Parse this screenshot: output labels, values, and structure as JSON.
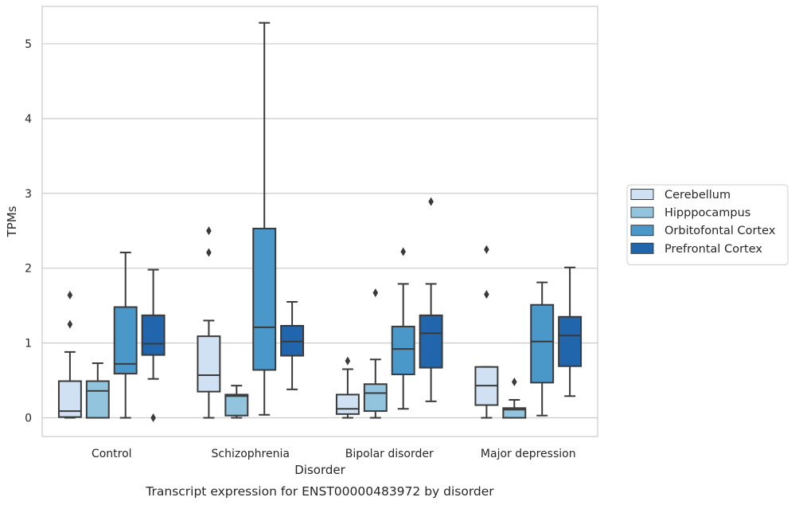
{
  "chart_data": {
    "type": "box",
    "caption": "Transcript expression for ENST00000483972 by disorder",
    "xlabel": "Disorder",
    "ylabel": "TPMs",
    "ylim": [
      -0.25,
      5.5
    ],
    "yticks": [
      0,
      1,
      2,
      3,
      4,
      5
    ],
    "grid": true,
    "legend_position": "right",
    "categories": [
      "Control",
      "Schizophrenia",
      "Bipolar disorder",
      "Major depression"
    ],
    "series": [
      {
        "name": "Cerebellum",
        "color": "#cfe1f2",
        "boxes": [
          {
            "whislo": 0.0,
            "q1": 0.01,
            "med": 0.09,
            "q3": 0.49,
            "whishi": 0.88,
            "fliers": [
              1.25,
              1.64
            ]
          },
          {
            "whislo": 0.0,
            "q1": 0.35,
            "med": 0.57,
            "q3": 1.09,
            "whishi": 1.3,
            "fliers": [
              2.21,
              2.5
            ]
          },
          {
            "whislo": 0.0,
            "q1": 0.05,
            "med": 0.12,
            "q3": 0.31,
            "whishi": 0.65,
            "fliers": [
              0.76
            ]
          },
          {
            "whislo": 0.0,
            "q1": 0.17,
            "med": 0.43,
            "q3": 0.68,
            "whishi": 0.68,
            "fliers": [
              1.65,
              2.25
            ]
          }
        ]
      },
      {
        "name": "Hipppocampus",
        "color": "#93c4de",
        "boxes": [
          {
            "whislo": 0.0,
            "q1": 0.0,
            "med": 0.36,
            "q3": 0.49,
            "whishi": 0.73,
            "fliers": []
          },
          {
            "whislo": 0.0,
            "q1": 0.03,
            "med": 0.29,
            "q3": 0.31,
            "whishi": 0.43,
            "fliers": []
          },
          {
            "whislo": 0.0,
            "q1": 0.09,
            "med": 0.33,
            "q3": 0.45,
            "whishi": 0.78,
            "fliers": [
              1.67
            ]
          },
          {
            "whislo": 0.0,
            "q1": 0.0,
            "med": 0.11,
            "q3": 0.13,
            "whishi": 0.24,
            "fliers": [
              0.48
            ]
          }
        ]
      },
      {
        "name": "Orbitofontal Cortex",
        "color": "#4a98c9",
        "boxes": [
          {
            "whislo": 0.0,
            "q1": 0.59,
            "med": 0.72,
            "q3": 1.48,
            "whishi": 2.21,
            "fliers": []
          },
          {
            "whislo": 0.04,
            "q1": 0.64,
            "med": 1.21,
            "q3": 2.53,
            "whishi": 5.28,
            "fliers": []
          },
          {
            "whislo": 0.12,
            "q1": 0.58,
            "med": 0.92,
            "q3": 1.22,
            "whishi": 1.79,
            "fliers": [
              2.22
            ]
          },
          {
            "whislo": 0.03,
            "q1": 0.47,
            "med": 1.02,
            "q3": 1.51,
            "whishi": 1.81,
            "fliers": []
          }
        ]
      },
      {
        "name": "Prefrontal Cortex",
        "color": "#2166ac",
        "boxes": [
          {
            "whislo": 0.52,
            "q1": 0.84,
            "med": 0.99,
            "q3": 1.37,
            "whishi": 1.98,
            "fliers": [
              0.0
            ]
          },
          {
            "whislo": 0.38,
            "q1": 0.83,
            "med": 1.02,
            "q3": 1.23,
            "whishi": 1.55,
            "fliers": []
          },
          {
            "whislo": 0.22,
            "q1": 0.67,
            "med": 1.13,
            "q3": 1.37,
            "whishi": 1.79,
            "fliers": [
              2.89
            ]
          },
          {
            "whislo": 0.29,
            "q1": 0.69,
            "med": 1.1,
            "q3": 1.35,
            "whishi": 2.01,
            "fliers": []
          }
        ]
      }
    ]
  }
}
